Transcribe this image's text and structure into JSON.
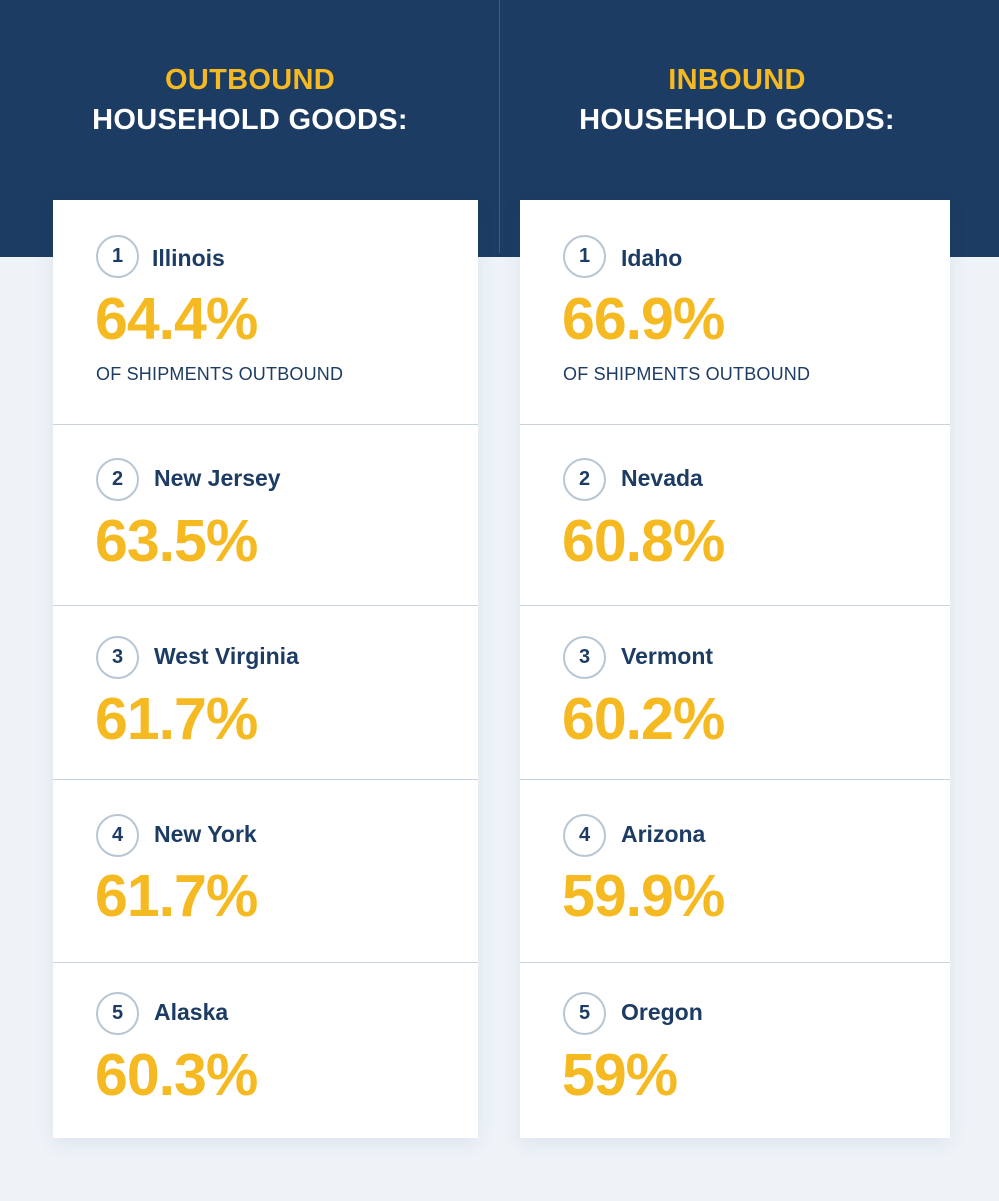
{
  "outbound": {
    "title_accent": "OUTBOUND",
    "title_sub": "HOUSEHOLD GOODS:",
    "note": "OF SHIPMENTS OUTBOUND",
    "items": [
      {
        "rank": "1",
        "state": "Illinois",
        "percent": "64.4%"
      },
      {
        "rank": "2",
        "state": "New Jersey",
        "percent": "63.5%"
      },
      {
        "rank": "3",
        "state": "West Virginia",
        "percent": "61.7%"
      },
      {
        "rank": "4",
        "state": "New York",
        "percent": "61.7%"
      },
      {
        "rank": "5",
        "state": "Alaska",
        "percent": "60.3%"
      }
    ]
  },
  "inbound": {
    "title_accent": "INBOUND",
    "title_sub": "HOUSEHOLD GOODS:",
    "note": "OF SHIPMENTS OUTBOUND",
    "items": [
      {
        "rank": "1",
        "state": "Idaho",
        "percent": "66.9%"
      },
      {
        "rank": "2",
        "state": "Nevada",
        "percent": "60.8%"
      },
      {
        "rank": "3",
        "state": "Vermont",
        "percent": "60.2%"
      },
      {
        "rank": "4",
        "state": "Arizona",
        "percent": "59.9%"
      },
      {
        "rank": "5",
        "state": "Oregon",
        "percent": "59%"
      }
    ]
  },
  "colors": {
    "navy": "#1d3c63",
    "accent_yellow": "#f5b921",
    "background": "#eef3f8",
    "card": "#ffffff"
  }
}
